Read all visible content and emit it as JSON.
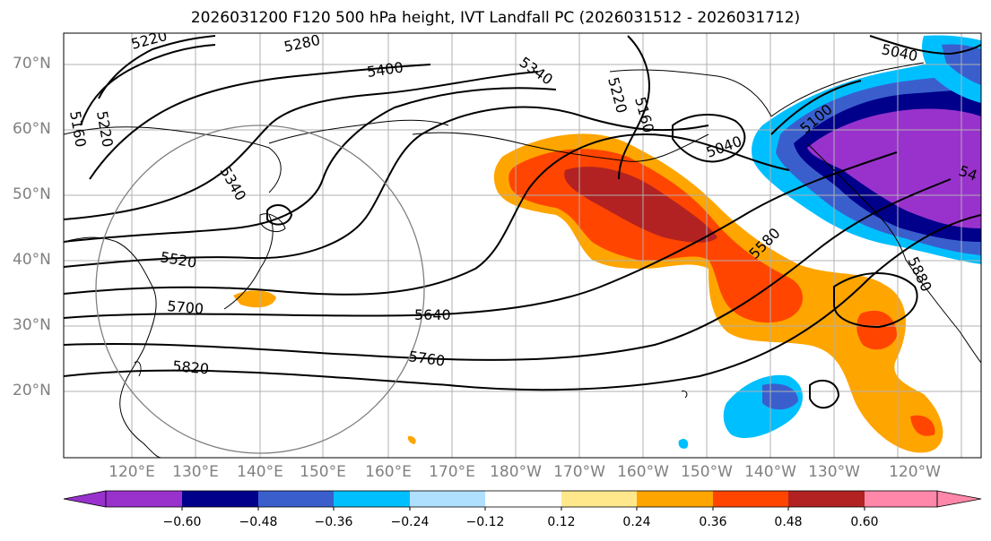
{
  "title": "2026031200 F120 500 hPa height, IVT Landfall PC (2026031512 - 2026031712)",
  "lat_labels": [
    "70°N",
    "60°N",
    "50°N",
    "40°N",
    "30°N",
    "20°N"
  ],
  "lon_labels": [
    "120°E",
    "130°E",
    "140°E",
    "150°E",
    "160°E",
    "170°E",
    "180°W",
    "170°W",
    "160°W",
    "150°W",
    "140°W",
    "130°W",
    "120°W"
  ],
  "contour_labels": [
    "5220",
    "5280",
    "5400",
    "5340",
    "5040",
    "5160",
    "5220",
    "5340",
    "5100",
    "5520",
    "5700",
    "5640",
    "5760",
    "5820",
    "5580",
    "5880",
    "5040",
    "5220",
    "5160",
    "54"
  ],
  "colorbar": {
    "ticks": [
      "−0.60",
      "−0.48",
      "−0.36",
      "−0.24",
      "−0.12",
      "0.12",
      "0.24",
      "0.36",
      "0.48",
      "0.60"
    ],
    "colors": [
      "#9932cc",
      "#00008b",
      "#3a5fcd",
      "#00bfff",
      "#b0e0ff",
      "#ffffff",
      "#ffe88c",
      "#ffa500",
      "#ff4500",
      "#b22222",
      "#ff88aa"
    ]
  }
}
